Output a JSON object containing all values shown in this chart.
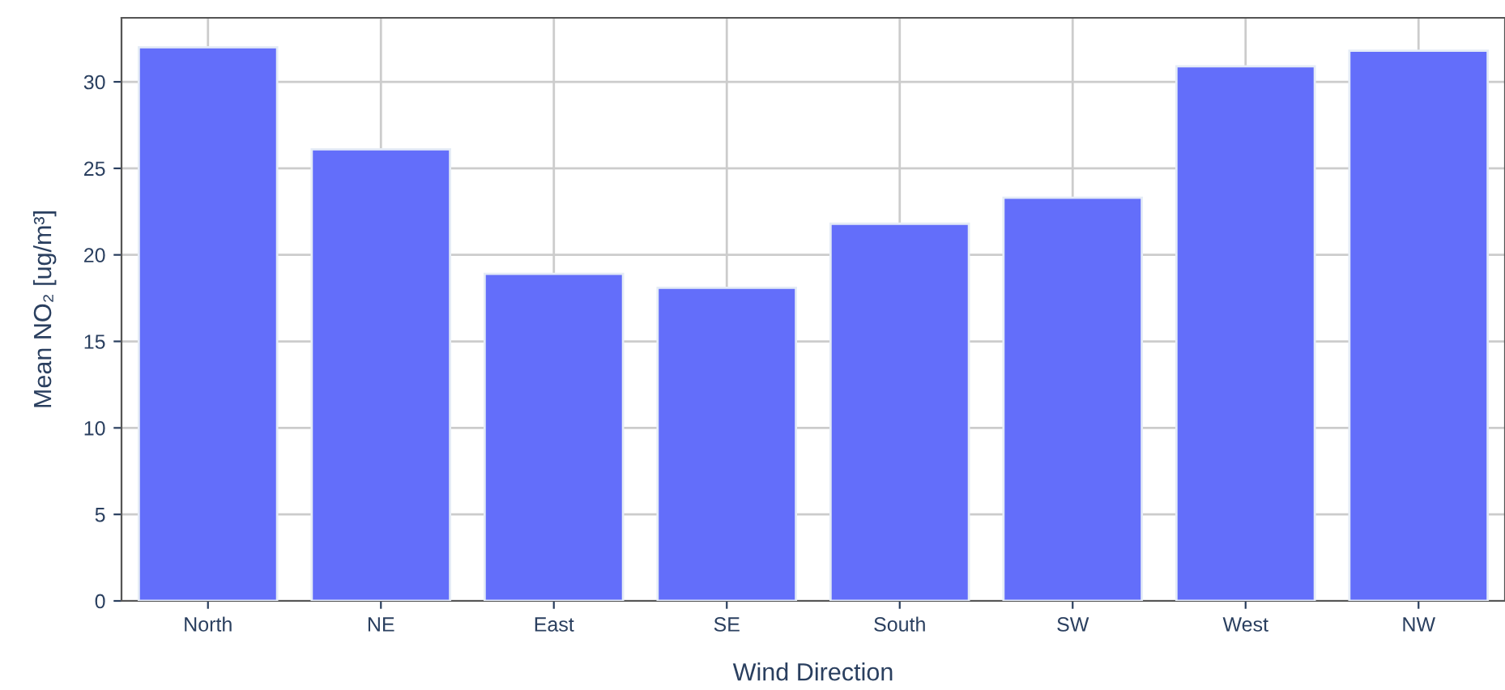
{
  "chart_data": {
    "type": "bar",
    "xlabel": "Wind Direction",
    "ylabel": "Mean NO₂ [ug/m³]",
    "categories": [
      "North",
      "NE",
      "East",
      "SE",
      "South",
      "SW",
      "West",
      "NW"
    ],
    "values": [
      32,
      26.1,
      18.9,
      18.1,
      21.8,
      23.3,
      30.9,
      31.8
    ],
    "color": "#636efa",
    "ylim": [
      0,
      33.7
    ],
    "yticks": [
      0,
      5,
      10,
      15,
      20,
      25,
      30
    ],
    "grid": true
  }
}
